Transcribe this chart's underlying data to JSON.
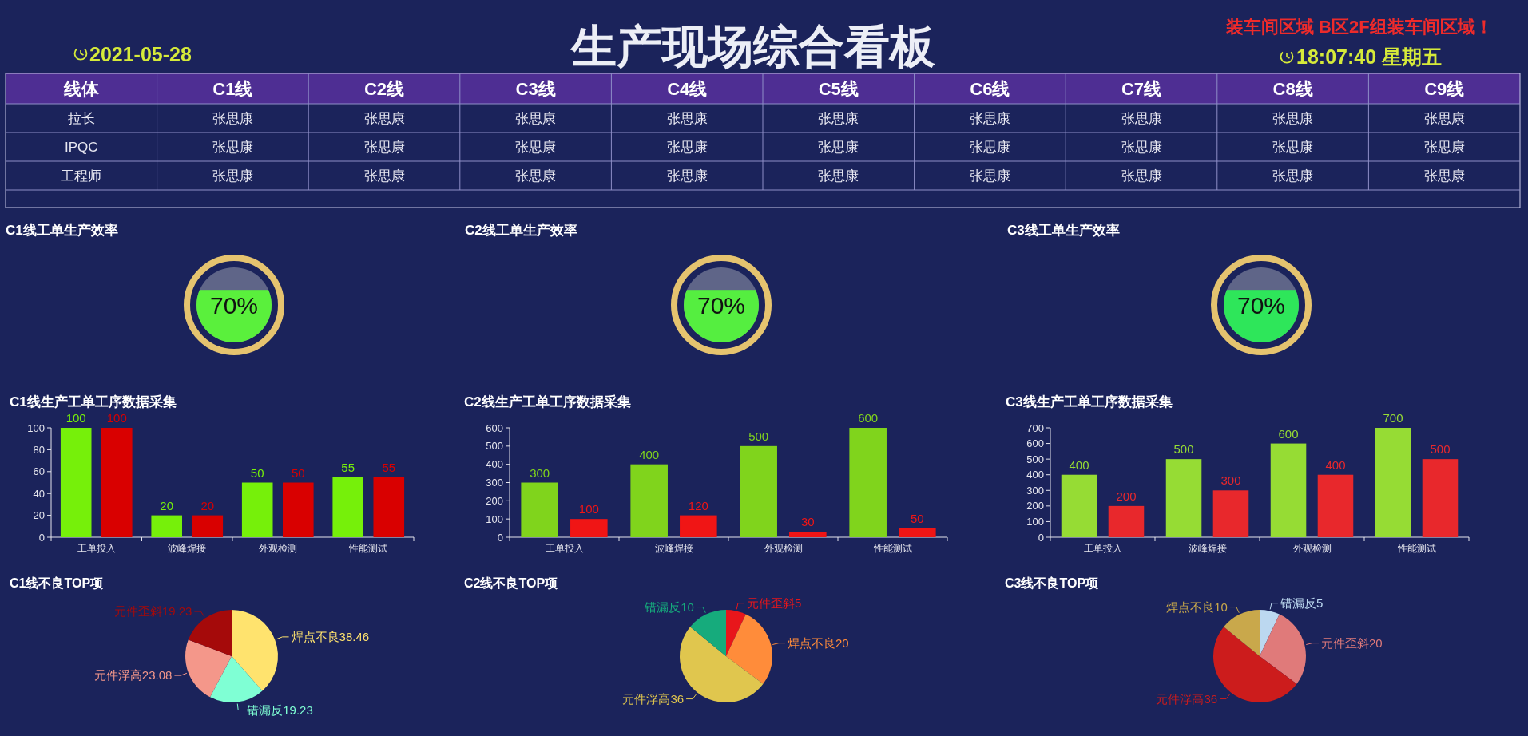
{
  "chart_data": [
    {
      "type": "other",
      "title": "生产现场综合看板",
      "annotations": [
        "2021-05-28",
        "装车间区域 B区2F组装车间区域！",
        "18:07:40 星期五"
      ]
    },
    {
      "type": "other",
      "xlabel": "线体",
      "categories": [
        "C1线",
        "C2线",
        "C3线",
        "C4线",
        "C5线",
        "C6线",
        "C7线",
        "C8线",
        "C9线"
      ],
      "y_categories": [
        "拉长",
        "IPQC",
        "工程师"
      ],
      "cell_labels": [
        [
          "张思康",
          "张思康",
          "张思康",
          "张思康",
          "张思康",
          "张思康",
          "张思康",
          "张思康",
          "张思康"
        ],
        [
          "张思康",
          "张思康",
          "张思康",
          "张思康",
          "张思康",
          "张思康",
          "张思康",
          "张思康",
          "张思康"
        ],
        [
          "张思康",
          "张思康",
          "张思康",
          "张思康",
          "张思康",
          "张思康",
          "张思康",
          "张思康",
          "张思康"
        ]
      ]
    },
    {
      "type": "other",
      "title": "C1线工单生产效率",
      "values": [
        70
      ],
      "value_labels": [
        "70%"
      ],
      "color": "#5af03c"
    },
    {
      "type": "other",
      "title": "C2线工单生产效率",
      "values": [
        70
      ],
      "value_labels": [
        "70%"
      ],
      "color": "#55ee40"
    },
    {
      "type": "other",
      "title": "C3线工单生产效率",
      "values": [
        70
      ],
      "value_labels": [
        "70%"
      ],
      "color": "#2ee65a"
    },
    {
      "type": "bar",
      "title": "C1线生产工单工序数据采集",
      "categories": [
        "工单投入",
        "波峰焊接",
        "外观检测",
        "性能测试"
      ],
      "series": [
        {
          "color": "#76f00a",
          "values": [
            100,
            20,
            50,
            55
          ]
        },
        {
          "color": "#d90000",
          "values": [
            100,
            20,
            50,
            55
          ]
        }
      ],
      "ylim": [
        0,
        100
      ],
      "yticks": [
        0,
        20,
        40,
        60,
        80,
        100
      ],
      "data_labels": true
    },
    {
      "type": "bar",
      "title": "C2线生产工单工序数据采集",
      "categories": [
        "工单投入",
        "波峰焊接",
        "外观检测",
        "性能测试"
      ],
      "series": [
        {
          "color": "#80d41c",
          "values": [
            300,
            400,
            500,
            600
          ]
        },
        {
          "color": "#f01515",
          "values": [
            100,
            120,
            30,
            50
          ]
        }
      ],
      "ylim": [
        0,
        600
      ],
      "yticks": [
        0,
        100,
        200,
        300,
        400,
        500,
        600
      ],
      "data_labels": true
    },
    {
      "type": "bar",
      "title": "C3线生产工单工序数据采集",
      "categories": [
        "工单投入",
        "波峰焊接",
        "外观检测",
        "性能测试"
      ],
      "series": [
        {
          "color": "#96dc34",
          "values": [
            400,
            500,
            600,
            700
          ]
        },
        {
          "color": "#e8282c",
          "values": [
            200,
            300,
            400,
            500
          ]
        }
      ],
      "ylim": [
        0,
        700
      ],
      "yticks": [
        0,
        100,
        200,
        300,
        400,
        500,
        600,
        700
      ],
      "data_labels": true
    },
    {
      "type": "pie",
      "title": "C1线不良TOP项",
      "categories": [
        "焊点不良",
        "错漏反",
        "元件浮高",
        "元件歪斜"
      ],
      "values": [
        38.46,
        19.23,
        23.08,
        19.23
      ],
      "colors": [
        "#ffe36e",
        "#7fffd4",
        "#f4978a",
        "#a50a0a"
      ],
      "data_labels": true
    },
    {
      "type": "pie",
      "title": "C2线不良TOP项",
      "categories": [
        "元件歪斜",
        "焊点不良",
        "元件浮高",
        "错漏反"
      ],
      "values": [
        5,
        20,
        36,
        10
      ],
      "colors": [
        "#e8161b",
        "#ff8c3a",
        "#e0c64e",
        "#16ab7c"
      ],
      "data_labels": true
    },
    {
      "type": "pie",
      "title": "C3线不良TOP项",
      "categories": [
        "错漏反",
        "元件歪斜",
        "元件浮高",
        "焊点不良"
      ],
      "values": [
        5,
        20,
        36,
        10
      ],
      "colors": [
        "#bcd8f0",
        "#e07a7a",
        "#cc1c1c",
        "#c9a84b"
      ],
      "data_labels": true
    }
  ]
}
